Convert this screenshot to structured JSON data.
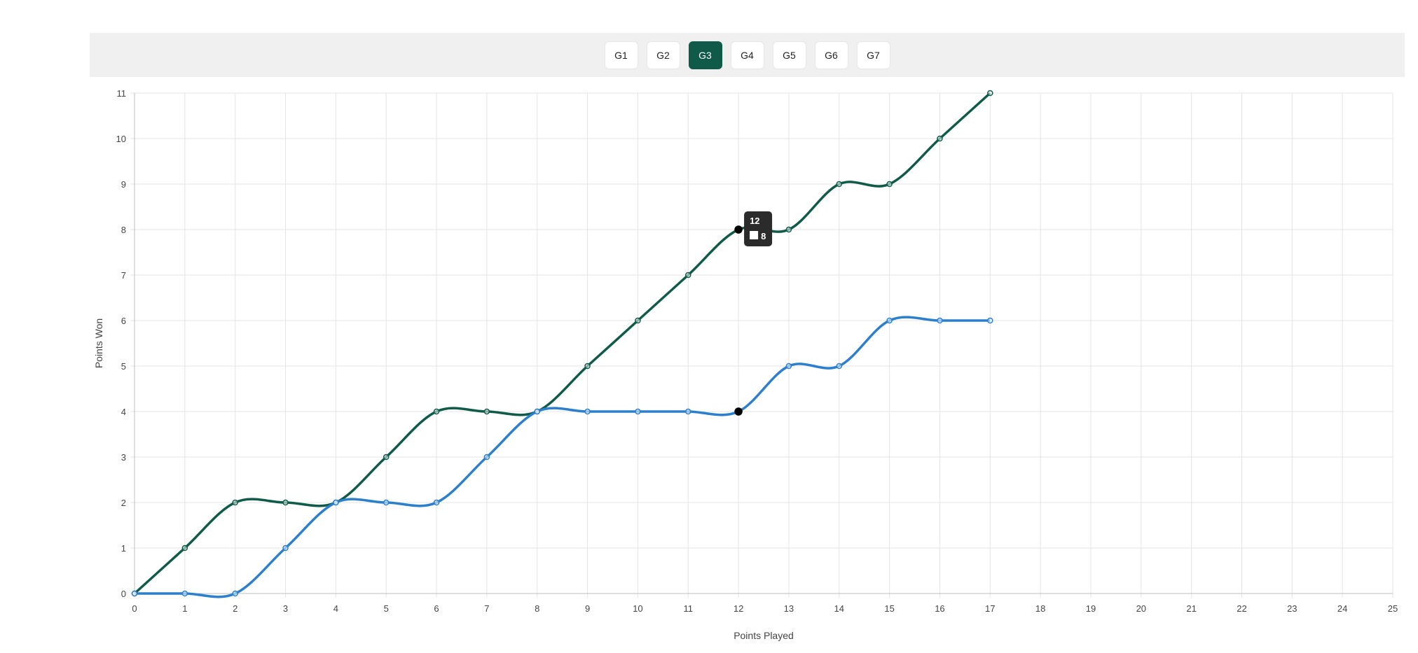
{
  "tabs": [
    {
      "label": "G1",
      "active": false
    },
    {
      "label": "G2",
      "active": false
    },
    {
      "label": "G3",
      "active": true
    },
    {
      "label": "G4",
      "active": false
    },
    {
      "label": "G5",
      "active": false
    },
    {
      "label": "G6",
      "active": false
    },
    {
      "label": "G7",
      "active": false
    }
  ],
  "chart_data": {
    "type": "line",
    "xlabel": "Points Played",
    "ylabel": "Points Won",
    "xlim": [
      0,
      25
    ],
    "ylim": [
      0,
      11
    ],
    "grid": true,
    "legend": "none",
    "x": [
      0,
      1,
      2,
      3,
      4,
      5,
      6,
      7,
      8,
      9,
      10,
      11,
      12,
      13,
      14,
      15,
      16,
      17
    ],
    "series": [
      {
        "color": "#0f5a48",
        "values": [
          0,
          1,
          2,
          2,
          2,
          3,
          4,
          4,
          4,
          5,
          6,
          7,
          8,
          8,
          9,
          9,
          10,
          11
        ]
      },
      {
        "color": "#2b7fcd",
        "values": [
          0,
          0,
          0,
          1,
          2,
          2,
          2,
          3,
          4,
          4,
          4,
          4,
          4,
          5,
          5,
          6,
          6,
          6
        ]
      }
    ],
    "tooltip": {
      "x": 12,
      "title": "12",
      "value": "8"
    }
  }
}
